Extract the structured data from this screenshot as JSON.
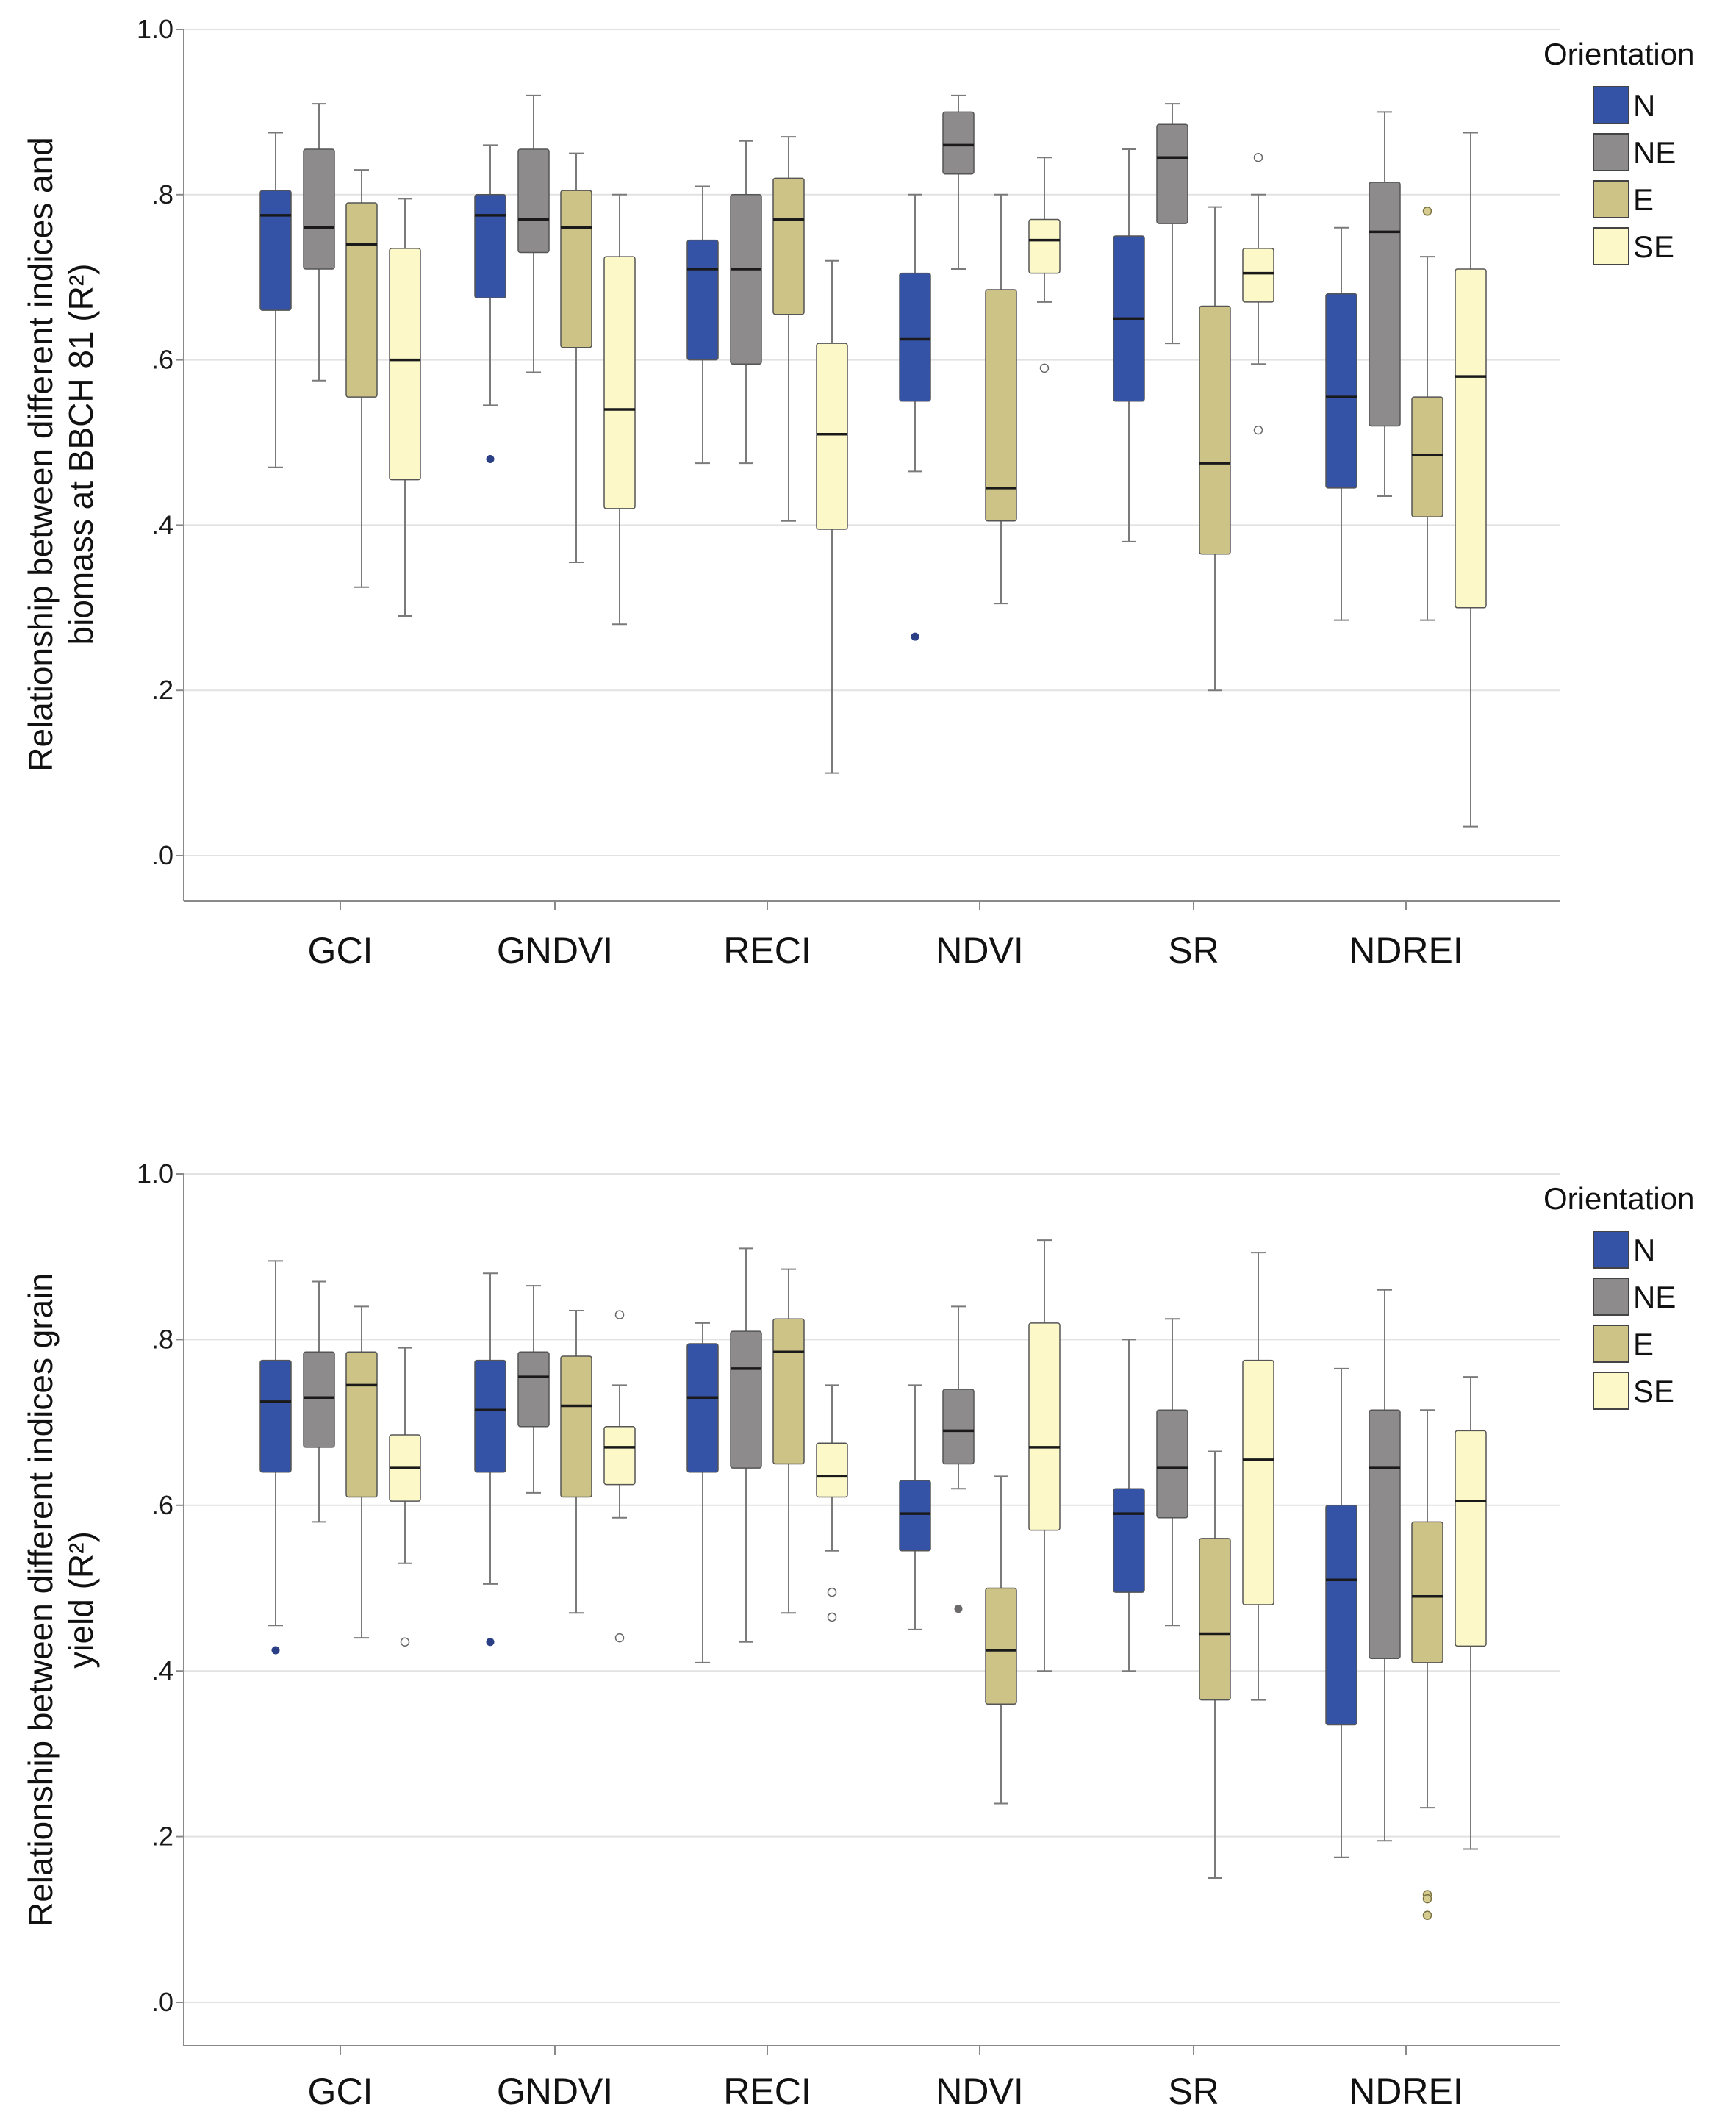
{
  "colors": {
    "N": "#3452a6",
    "NE": "#8e8b8c",
    "E": "#cdc387",
    "SE": "#fdf8c8",
    "gridline": "#e2e2e2",
    "axis": "#8a8a8a",
    "whisker": "#7a7a7a"
  },
  "chart_data": [
    {
      "type": "box",
      "title": "",
      "ylabel_line1": "Relationship between different indices and",
      "ylabel_line2": "biomass at BBCH 81 (R²)",
      "ylim": [
        0,
        1.0
      ],
      "yticks": [
        {
          "value": 0.0,
          "label": ".0"
        },
        {
          "value": 0.2,
          "label": ".2"
        },
        {
          "value": 0.4,
          "label": ".4"
        },
        {
          "value": 0.6,
          "label": ".6"
        },
        {
          "value": 0.8,
          "label": ".8"
        },
        {
          "value": 1.0,
          "label": "1.0"
        }
      ],
      "categories": [
        "GCI",
        "GNDVI",
        "RECI",
        "NDVI",
        "SR",
        "NDREI"
      ],
      "legend": {
        "title": "Orientation",
        "entries": [
          "N",
          "NE",
          "E",
          "SE"
        ],
        "position": "top-right"
      },
      "series": [
        {
          "name": "N",
          "boxes": [
            {
              "min": 0.47,
              "q1": 0.66,
              "median": 0.775,
              "q3": 0.805,
              "max": 0.875,
              "outliers": []
            },
            {
              "min": 0.545,
              "q1": 0.675,
              "median": 0.775,
              "q3": 0.8,
              "max": 0.86,
              "outliers": [
                0.48
              ]
            },
            {
              "min": 0.475,
              "q1": 0.6,
              "median": 0.71,
              "q3": 0.745,
              "max": 0.81,
              "outliers": []
            },
            {
              "min": 0.465,
              "q1": 0.55,
              "median": 0.625,
              "q3": 0.705,
              "max": 0.8,
              "outliers": [
                0.265
              ]
            },
            {
              "min": 0.38,
              "q1": 0.55,
              "median": 0.65,
              "q3": 0.75,
              "max": 0.855,
              "outliers": []
            },
            {
              "min": 0.285,
              "q1": 0.445,
              "median": 0.555,
              "q3": 0.68,
              "max": 0.76,
              "outliers": []
            }
          ]
        },
        {
          "name": "NE",
          "boxes": [
            {
              "min": 0.575,
              "q1": 0.71,
              "median": 0.76,
              "q3": 0.855,
              "max": 0.91,
              "outliers": []
            },
            {
              "min": 0.585,
              "q1": 0.73,
              "median": 0.77,
              "q3": 0.855,
              "max": 0.92,
              "outliers": []
            },
            {
              "min": 0.475,
              "q1": 0.595,
              "median": 0.71,
              "q3": 0.8,
              "max": 0.865,
              "outliers": []
            },
            {
              "min": 0.71,
              "q1": 0.825,
              "median": 0.86,
              "q3": 0.9,
              "max": 0.92,
              "outliers": []
            },
            {
              "min": 0.62,
              "q1": 0.765,
              "median": 0.845,
              "q3": 0.885,
              "max": 0.91,
              "outliers": []
            },
            {
              "min": 0.435,
              "q1": 0.52,
              "median": 0.755,
              "q3": 0.815,
              "max": 0.9,
              "outliers": []
            }
          ]
        },
        {
          "name": "E",
          "boxes": [
            {
              "min": 0.325,
              "q1": 0.555,
              "median": 0.74,
              "q3": 0.79,
              "max": 0.83,
              "outliers": []
            },
            {
              "min": 0.355,
              "q1": 0.615,
              "median": 0.76,
              "q3": 0.805,
              "max": 0.85,
              "outliers": []
            },
            {
              "min": 0.405,
              "q1": 0.655,
              "median": 0.77,
              "q3": 0.82,
              "max": 0.87,
              "outliers": []
            },
            {
              "min": 0.305,
              "q1": 0.405,
              "median": 0.445,
              "q3": 0.685,
              "max": 0.8,
              "outliers": []
            },
            {
              "min": 0.2,
              "q1": 0.365,
              "median": 0.475,
              "q3": 0.665,
              "max": 0.785,
              "outliers": []
            },
            {
              "min": 0.285,
              "q1": 0.41,
              "median": 0.485,
              "q3": 0.555,
              "max": 0.725,
              "outliers": [
                0.78
              ]
            }
          ]
        },
        {
          "name": "SE",
          "boxes": [
            {
              "min": 0.29,
              "q1": 0.455,
              "median": 0.6,
              "q3": 0.735,
              "max": 0.795,
              "outliers": []
            },
            {
              "min": 0.28,
              "q1": 0.42,
              "median": 0.54,
              "q3": 0.725,
              "max": 0.8,
              "outliers": []
            },
            {
              "min": 0.1,
              "q1": 0.395,
              "median": 0.51,
              "q3": 0.62,
              "max": 0.72,
              "outliers": []
            },
            {
              "min": 0.67,
              "q1": 0.705,
              "median": 0.745,
              "q3": 0.77,
              "max": 0.845,
              "outliers": [
                0.59
              ]
            },
            {
              "min": 0.595,
              "q1": 0.67,
              "median": 0.705,
              "q3": 0.735,
              "max": 0.8,
              "outliers": [
                0.845,
                0.515
              ]
            },
            {
              "min": 0.035,
              "q1": 0.3,
              "median": 0.58,
              "q3": 0.71,
              "max": 0.875,
              "outliers": []
            }
          ]
        }
      ]
    },
    {
      "type": "box",
      "title": "",
      "ylabel_line1": "Relationship between different indices grain",
      "ylabel_line2": "yield (R²)",
      "ylim": [
        0,
        1.0
      ],
      "yticks": [
        {
          "value": 0.0,
          "label": ".0"
        },
        {
          "value": 0.2,
          "label": ".2"
        },
        {
          "value": 0.4,
          "label": ".4"
        },
        {
          "value": 0.6,
          "label": ".6"
        },
        {
          "value": 0.8,
          "label": ".8"
        },
        {
          "value": 1.0,
          "label": "1.0"
        }
      ],
      "categories": [
        "GCI",
        "GNDVI",
        "RECI",
        "NDVI",
        "SR",
        "NDREI"
      ],
      "legend": {
        "title": "Orientation",
        "entries": [
          "N",
          "NE",
          "E",
          "SE"
        ],
        "position": "top-right"
      },
      "series": [
        {
          "name": "N",
          "boxes": [
            {
              "min": 0.455,
              "q1": 0.64,
              "median": 0.725,
              "q3": 0.775,
              "max": 0.895,
              "outliers": [
                0.425
              ]
            },
            {
              "min": 0.505,
              "q1": 0.64,
              "median": 0.715,
              "q3": 0.775,
              "max": 0.88,
              "outliers": [
                0.435
              ]
            },
            {
              "min": 0.41,
              "q1": 0.64,
              "median": 0.73,
              "q3": 0.795,
              "max": 0.82,
              "outliers": []
            },
            {
              "min": 0.45,
              "q1": 0.545,
              "median": 0.59,
              "q3": 0.63,
              "max": 0.745,
              "outliers": []
            },
            {
              "min": 0.4,
              "q1": 0.495,
              "median": 0.59,
              "q3": 0.62,
              "max": 0.8,
              "outliers": []
            },
            {
              "min": 0.175,
              "q1": 0.335,
              "median": 0.51,
              "q3": 0.6,
              "max": 0.765,
              "outliers": []
            }
          ]
        },
        {
          "name": "NE",
          "boxes": [
            {
              "min": 0.58,
              "q1": 0.67,
              "median": 0.73,
              "q3": 0.785,
              "max": 0.87,
              "outliers": []
            },
            {
              "min": 0.615,
              "q1": 0.695,
              "median": 0.755,
              "q3": 0.785,
              "max": 0.865,
              "outliers": []
            },
            {
              "min": 0.435,
              "q1": 0.645,
              "median": 0.765,
              "q3": 0.81,
              "max": 0.91,
              "outliers": []
            },
            {
              "min": 0.62,
              "q1": 0.65,
              "median": 0.69,
              "q3": 0.74,
              "max": 0.84,
              "outliers": [
                0.475
              ]
            },
            {
              "min": 0.455,
              "q1": 0.585,
              "median": 0.645,
              "q3": 0.715,
              "max": 0.825,
              "outliers": []
            },
            {
              "min": 0.195,
              "q1": 0.415,
              "median": 0.645,
              "q3": 0.715,
              "max": 0.86,
              "outliers": []
            }
          ]
        },
        {
          "name": "E",
          "boxes": [
            {
              "min": 0.44,
              "q1": 0.61,
              "median": 0.745,
              "q3": 0.785,
              "max": 0.84,
              "outliers": []
            },
            {
              "min": 0.47,
              "q1": 0.61,
              "median": 0.72,
              "q3": 0.78,
              "max": 0.835,
              "outliers": []
            },
            {
              "min": 0.47,
              "q1": 0.65,
              "median": 0.785,
              "q3": 0.825,
              "max": 0.885,
              "outliers": []
            },
            {
              "min": 0.24,
              "q1": 0.36,
              "median": 0.425,
              "q3": 0.5,
              "max": 0.635,
              "outliers": []
            },
            {
              "min": 0.15,
              "q1": 0.365,
              "median": 0.445,
              "q3": 0.56,
              "max": 0.665,
              "outliers": []
            },
            {
              "min": 0.235,
              "q1": 0.41,
              "median": 0.49,
              "q3": 0.58,
              "max": 0.715,
              "outliers": [
                0.13,
                0.125,
                0.105
              ]
            }
          ]
        },
        {
          "name": "SE",
          "boxes": [
            {
              "min": 0.53,
              "q1": 0.605,
              "median": 0.645,
              "q3": 0.685,
              "max": 0.79,
              "outliers": [
                0.435
              ]
            },
            {
              "min": 0.585,
              "q1": 0.625,
              "median": 0.67,
              "q3": 0.695,
              "max": 0.745,
              "outliers": [
                0.83,
                0.44
              ]
            },
            {
              "min": 0.545,
              "q1": 0.61,
              "median": 0.635,
              "q3": 0.675,
              "max": 0.745,
              "outliers": [
                0.495,
                0.465
              ]
            },
            {
              "min": 0.4,
              "q1": 0.57,
              "median": 0.67,
              "q3": 0.82,
              "max": 0.92,
              "outliers": []
            },
            {
              "min": 0.365,
              "q1": 0.48,
              "median": 0.655,
              "q3": 0.775,
              "max": 0.905,
              "outliers": []
            },
            {
              "min": 0.185,
              "q1": 0.43,
              "median": 0.605,
              "q3": 0.69,
              "max": 0.755,
              "outliers": []
            }
          ]
        }
      ]
    }
  ]
}
